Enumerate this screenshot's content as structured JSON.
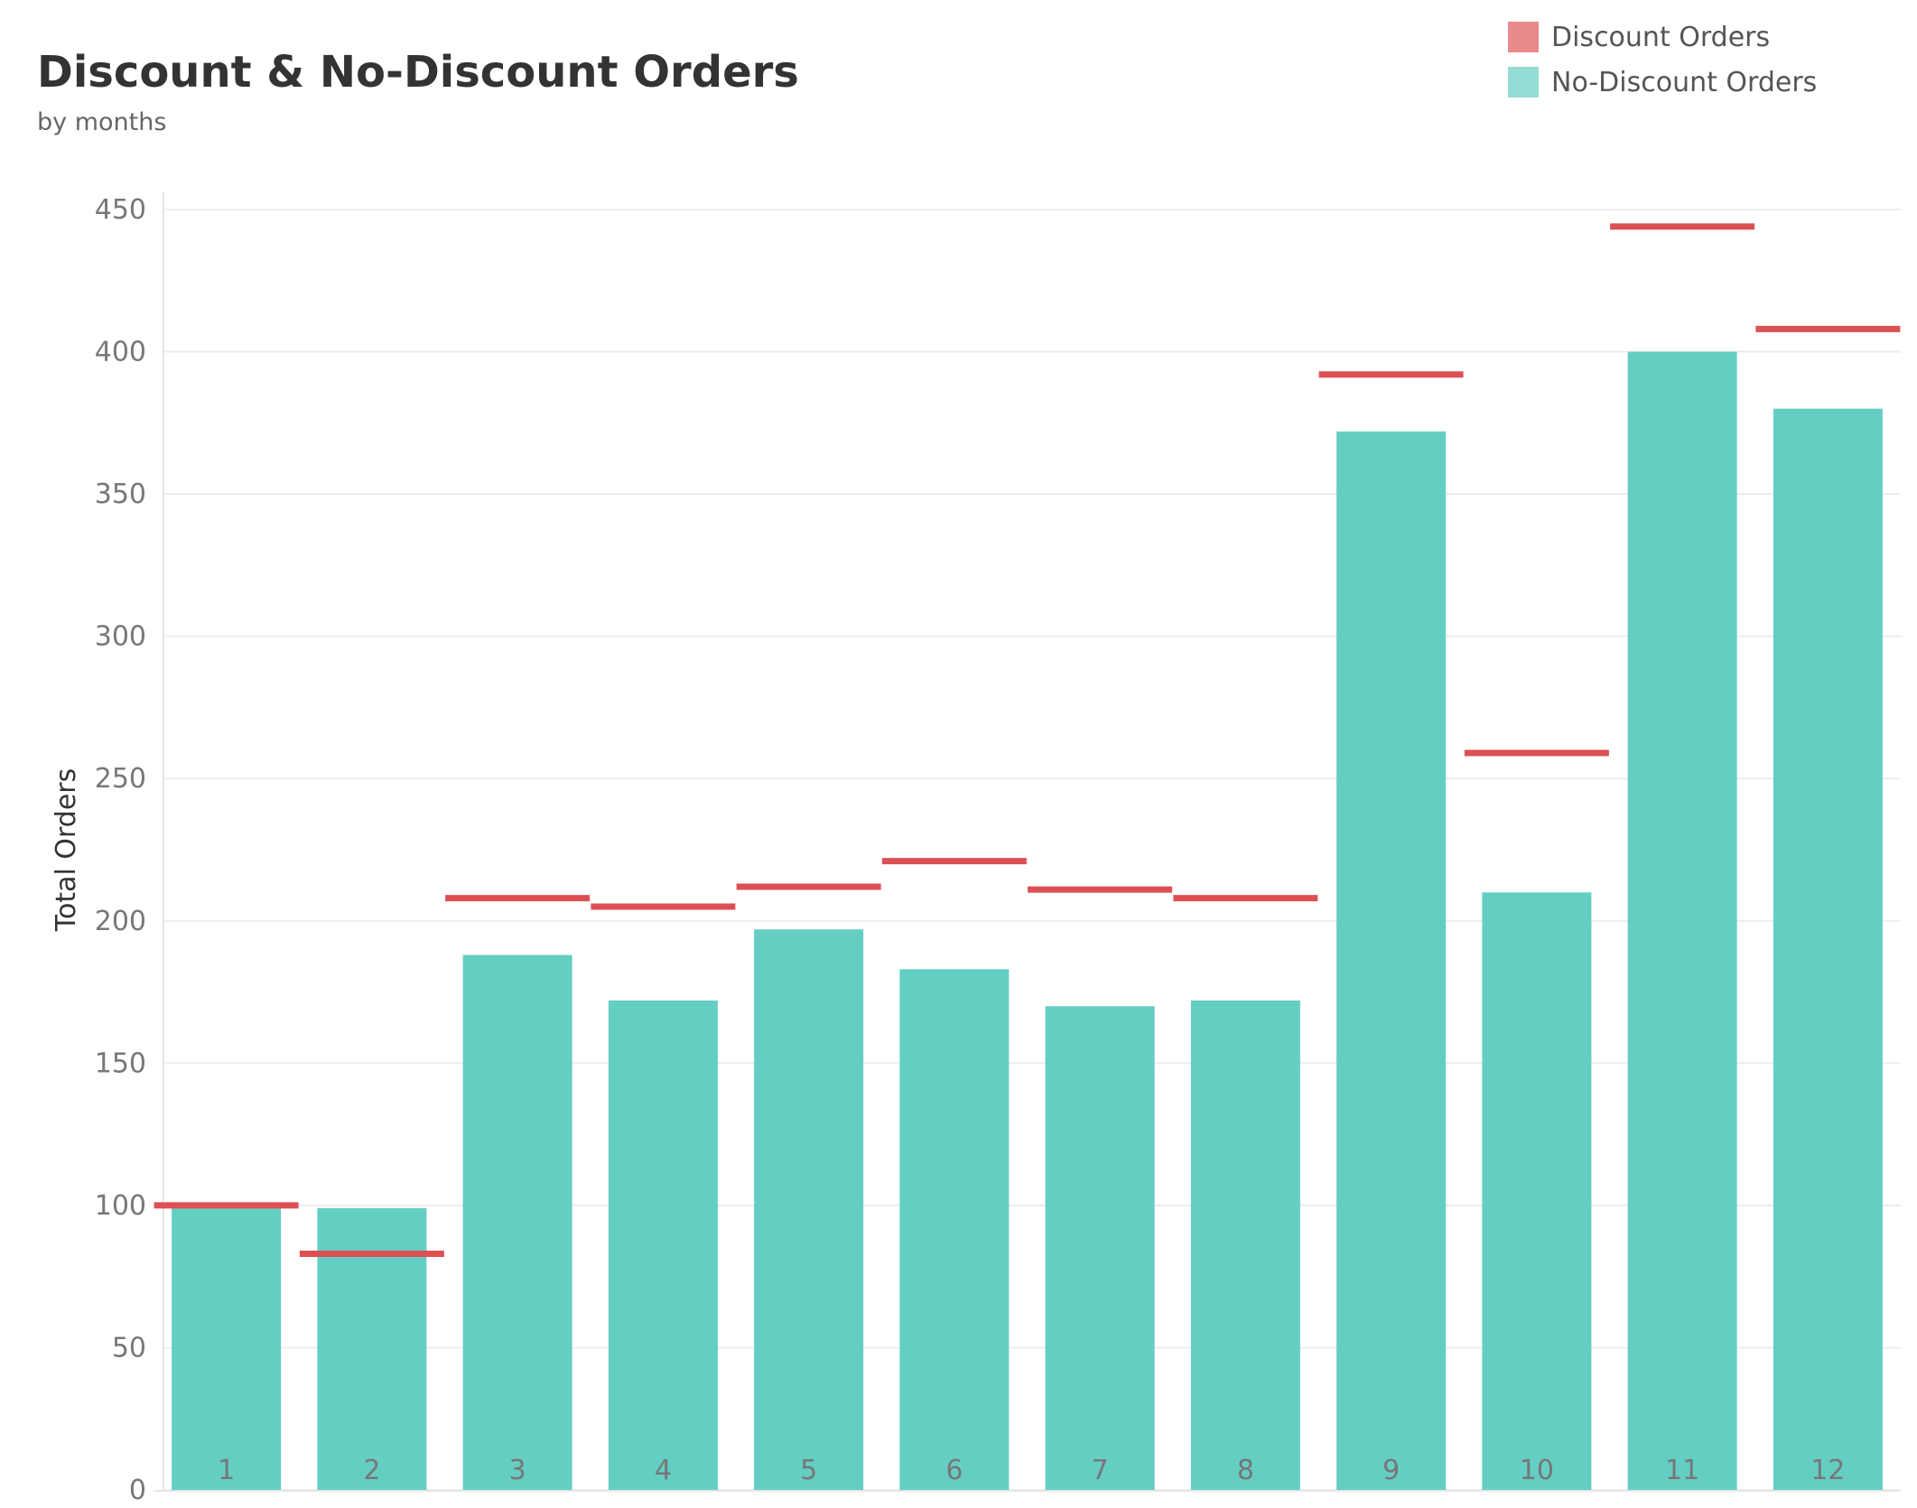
{
  "chart_data": {
    "type": "bar",
    "title": "Discount & No-Discount Orders",
    "subtitle": "by months",
    "xlabel": "",
    "ylabel": "Total Orders",
    "ylim": [
      0,
      450
    ],
    "yticks": [
      0,
      50,
      100,
      150,
      200,
      250,
      300,
      350,
      400,
      450
    ],
    "grid": true,
    "legend_position": "top-right",
    "categories": [
      "1",
      "2",
      "3",
      "4",
      "5",
      "6",
      "7",
      "8",
      "9",
      "10",
      "11",
      "12"
    ],
    "series": [
      {
        "name": "No-Discount Orders",
        "mark": "bar",
        "color": "#64CEC3",
        "values": [
          100,
          99,
          188,
          172,
          197,
          183,
          170,
          172,
          372,
          210,
          400,
          380
        ]
      },
      {
        "name": "Discount Orders",
        "mark": "line-marker",
        "color": "#DC5054",
        "values": [
          100,
          83,
          208,
          205,
          212,
          221,
          211,
          208,
          392,
          259,
          444,
          408
        ]
      }
    ]
  },
  "legend": {
    "items": [
      {
        "label": "Discount Orders",
        "color": "#E88A8B"
      },
      {
        "label": "No-Discount Orders",
        "color": "#94DDD5"
      }
    ]
  }
}
